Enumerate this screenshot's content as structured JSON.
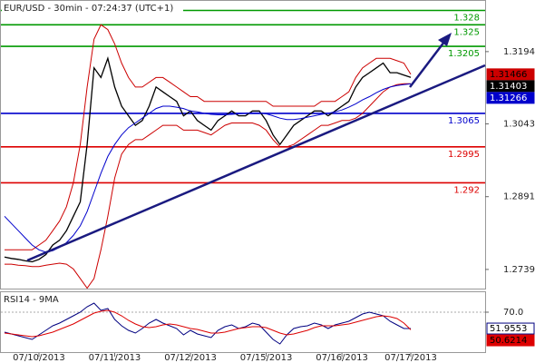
{
  "chart_data": [
    {
      "type": "line",
      "title": "EUR/USD - 30min - 07:24:37 (UTC+1)",
      "ylim": [
        1.2699,
        1.3298
      ],
      "yticks": [
        1.3194,
        1.3043,
        1.2891,
        1.2739
      ],
      "levels": [
        {
          "value": 1.328,
          "color": "#009900"
        },
        {
          "value": 1.325,
          "color": "#009900"
        },
        {
          "value": 1.3205,
          "color": "#009900"
        },
        {
          "value": 1.3065,
          "color": "#0000cc"
        },
        {
          "value": 1.2995,
          "color": "#dd0000"
        },
        {
          "value": 1.292,
          "color": "#dd0000"
        }
      ],
      "series": [
        {
          "color": "#cc0000",
          "box": true,
          "values": [
            1.278,
            1.278,
            1.278,
            1.278,
            1.278,
            1.279,
            1.28,
            1.282,
            1.284,
            1.287,
            1.292,
            1.3,
            1.312,
            1.322,
            1.325,
            1.324,
            1.321,
            1.317,
            1.314,
            1.312,
            1.312,
            1.313,
            1.314,
            1.314,
            1.313,
            1.312,
            1.311,
            1.31,
            1.31,
            1.309,
            1.309,
            1.309,
            1.309,
            1.309,
            1.309,
            1.309,
            1.309,
            1.309,
            1.309,
            1.308,
            1.308,
            1.308,
            1.308,
            1.308,
            1.308,
            1.308,
            1.309,
            1.309,
            1.309,
            1.31,
            1.311,
            1.314,
            1.316,
            1.317,
            1.318,
            1.318,
            1.318,
            1.3175,
            1.317,
            1.31466
          ]
        },
        {
          "color": "#cc0000",
          "box": false,
          "values": [
            1.275,
            1.275,
            1.2748,
            1.2747,
            1.2745,
            1.2745,
            1.2748,
            1.275,
            1.2752,
            1.275,
            1.274,
            1.272,
            1.27,
            1.272,
            1.278,
            1.285,
            1.293,
            1.298,
            1.3,
            1.301,
            1.301,
            1.302,
            1.303,
            1.304,
            1.304,
            1.304,
            1.303,
            1.303,
            1.303,
            1.3025,
            1.302,
            1.303,
            1.304,
            1.3045,
            1.3045,
            1.3045,
            1.3045,
            1.304,
            1.303,
            1.301,
            1.2995,
            1.2995,
            1.3,
            1.301,
            1.302,
            1.303,
            1.304,
            1.304,
            1.3045,
            1.305,
            1.305,
            1.3055,
            1.3065,
            1.308,
            1.3095,
            1.311,
            1.312,
            1.3125,
            1.3127,
            1.3127
          ]
        },
        {
          "color": "#000000",
          "box": true,
          "values": [
            1.2765,
            1.2762,
            1.276,
            1.2757,
            1.2755,
            1.276,
            1.277,
            1.279,
            1.28,
            1.282,
            1.285,
            1.288,
            1.3,
            1.316,
            1.314,
            1.318,
            1.312,
            1.308,
            1.306,
            1.304,
            1.305,
            1.308,
            1.312,
            1.311,
            1.31,
            1.309,
            1.306,
            1.307,
            1.305,
            1.304,
            1.303,
            1.305,
            1.306,
            1.307,
            1.306,
            1.306,
            1.307,
            1.307,
            1.305,
            1.302,
            1.3,
            1.302,
            1.304,
            1.305,
            1.306,
            1.307,
            1.307,
            1.306,
            1.307,
            1.308,
            1.309,
            1.312,
            1.314,
            1.315,
            1.316,
            1.317,
            1.315,
            1.315,
            1.3145,
            1.31403
          ]
        },
        {
          "color": "#0000cc",
          "box": true,
          "values": [
            1.285,
            1.2835,
            1.282,
            1.2805,
            1.279,
            1.278,
            1.2775,
            1.2778,
            1.2785,
            1.2795,
            1.281,
            1.283,
            1.286,
            1.29,
            1.294,
            1.2975,
            1.3,
            1.302,
            1.3035,
            1.3045,
            1.3055,
            1.3065,
            1.3075,
            1.308,
            1.308,
            1.3078,
            1.3075,
            1.307,
            1.3068,
            1.3065,
            1.3063,
            1.3062,
            1.3062,
            1.3063,
            1.3064,
            1.3065,
            1.3066,
            1.3066,
            1.3064,
            1.306,
            1.3055,
            1.3052,
            1.3052,
            1.3054,
            1.3057,
            1.306,
            1.3063,
            1.3065,
            1.3068,
            1.3072,
            1.3078,
            1.3085,
            1.3093,
            1.31,
            1.3108,
            1.3115,
            1.312,
            1.3123,
            1.3125,
            1.31266
          ]
        }
      ]
    },
    {
      "type": "line",
      "title": "RSI14 - 9MA",
      "ylim": [
        25,
        92
      ],
      "yticks": [
        {
          "value": 70,
          "label": "70.0"
        }
      ],
      "categories": [
        null,
        null,
        null,
        null,
        null,
        "07/10/2013",
        null,
        null,
        null,
        null,
        null,
        null,
        null,
        null,
        null,
        null,
        "07/11/2013",
        null,
        null,
        null,
        null,
        null,
        null,
        null,
        null,
        null,
        null,
        "07/12/2013",
        null,
        null,
        null,
        null,
        null,
        null,
        null,
        null,
        null,
        null,
        "07/15/2013",
        null,
        null,
        null,
        null,
        null,
        null,
        null,
        null,
        null,
        null,
        "07/16/2013",
        null,
        null,
        null,
        null,
        null,
        null,
        null,
        null,
        null,
        "07/17/2013"
      ],
      "series": [
        {
          "color": "#000080",
          "box": true,
          "values": [
            48,
            46,
            44,
            42,
            40,
            45,
            50,
            55,
            58,
            62,
            66,
            70,
            76,
            80,
            72,
            74,
            62,
            55,
            50,
            47,
            52,
            58,
            62,
            58,
            55,
            52,
            45,
            50,
            46,
            44,
            42,
            50,
            54,
            56,
            52,
            54,
            58,
            56,
            48,
            40,
            35,
            45,
            52,
            54,
            55,
            58,
            56,
            52,
            56,
            58,
            60,
            64,
            68,
            70,
            68,
            66,
            60,
            56,
            52,
            51.9553
          ]
        },
        {
          "color": "#dd0000",
          "box": true,
          "values": [
            47,
            46,
            45,
            44,
            43,
            44,
            46,
            48,
            51,
            54,
            57,
            61,
            65,
            69,
            71,
            72,
            70,
            66,
            61,
            57,
            54,
            53,
            54,
            56,
            57,
            56,
            54,
            52,
            51,
            49,
            47,
            47,
            48,
            50,
            52,
            53,
            54,
            54,
            53,
            50,
            47,
            45,
            46,
            48,
            50,
            53,
            55,
            55,
            55,
            56,
            57,
            59,
            61,
            63,
            65,
            66,
            65,
            63,
            58,
            50.6214
          ]
        }
      ]
    }
  ]
}
